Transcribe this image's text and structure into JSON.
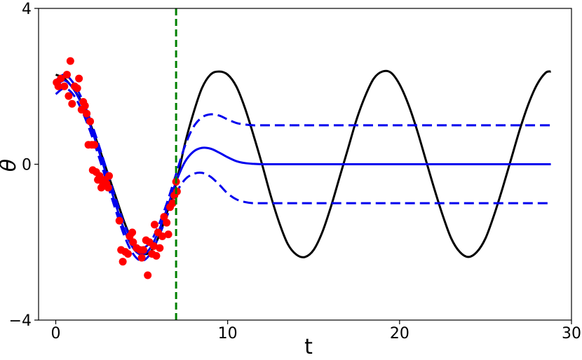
{
  "chart_data": {
    "type": "line",
    "title": "",
    "xlabel": "t",
    "ylabel": "θ",
    "xlim": [
      -1,
      30
    ],
    "ylim": [
      -4,
      4
    ],
    "xticks": [
      0,
      10,
      20,
      30
    ],
    "yticks": [
      -4,
      0,
      4
    ],
    "xtick_labels": [
      "0",
      "10",
      "20",
      "30"
    ],
    "ytick_labels": [
      "−4",
      "0",
      "4"
    ],
    "grid": false,
    "legend": "none",
    "colors": {
      "true_solution": "#000000",
      "prediction_mean": "#0000ee",
      "prediction_band": "#0000ee",
      "observations": "#ff0000",
      "boundary": "#008000"
    },
    "vline": {
      "x": 7
    },
    "series": [
      {
        "kind": "line",
        "style": "solid",
        "color": "#000000",
        "points": [
          [
            0,
            2.3
          ],
          [
            0.5,
            2.2
          ],
          [
            1,
            1.95
          ],
          [
            1.5,
            1.6
          ],
          [
            2,
            1.05
          ],
          [
            2.5,
            0.45
          ],
          [
            3,
            -0.2
          ],
          [
            3.5,
            -0.85
          ],
          [
            4,
            -1.5
          ],
          [
            4.5,
            -2.0
          ],
          [
            5,
            -2.28
          ],
          [
            5.5,
            -2.25
          ],
          [
            6,
            -1.85
          ],
          [
            6.5,
            -1.2
          ],
          [
            7,
            -0.5
          ],
          [
            7.5,
            0.5
          ],
          [
            8,
            1.3
          ],
          [
            8.5,
            1.95
          ],
          [
            9,
            2.3
          ],
          [
            9.5,
            2.38
          ],
          [
            10,
            2.3
          ],
          [
            10.5,
            2.0
          ],
          [
            11,
            1.45
          ],
          [
            11.5,
            0.75
          ],
          [
            12,
            0.0
          ],
          [
            12.5,
            -0.8
          ],
          [
            13,
            -1.5
          ],
          [
            13.5,
            -2.05
          ],
          [
            14,
            -2.32
          ],
          [
            14.5,
            -2.38
          ],
          [
            15,
            -2.2
          ],
          [
            15.5,
            -1.75
          ],
          [
            16,
            -1.1
          ],
          [
            16.5,
            -0.35
          ],
          [
            17,
            0.4
          ],
          [
            17.5,
            1.15
          ],
          [
            18,
            1.75
          ],
          [
            18.5,
            2.2
          ],
          [
            19,
            2.38
          ],
          [
            19.5,
            2.35
          ],
          [
            20,
            2.05
          ],
          [
            20.5,
            1.55
          ],
          [
            21,
            0.9
          ],
          [
            21.5,
            0.15
          ],
          [
            22,
            -0.6
          ],
          [
            22.5,
            -1.3
          ],
          [
            23,
            -1.9
          ],
          [
            23.5,
            -2.25
          ],
          [
            24,
            -2.38
          ],
          [
            24.5,
            -2.25
          ],
          [
            25,
            -1.9
          ],
          [
            25.5,
            -1.3
          ],
          [
            26,
            -0.6
          ],
          [
            26.5,
            0.15
          ],
          [
            27,
            0.9
          ],
          [
            27.5,
            1.55
          ],
          [
            28,
            2.05
          ],
          [
            28.5,
            2.35
          ],
          [
            28.8,
            2.38
          ]
        ]
      },
      {
        "kind": "line",
        "style": "solid",
        "color": "#0000ee",
        "points": [
          [
            0,
            2.0
          ],
          [
            0.5,
            2.15
          ],
          [
            1,
            1.95
          ],
          [
            1.5,
            1.55
          ],
          [
            2,
            1.0
          ],
          [
            2.5,
            0.35
          ],
          [
            3,
            -0.35
          ],
          [
            3.5,
            -1.05
          ],
          [
            4,
            -1.7
          ],
          [
            4.5,
            -2.15
          ],
          [
            5,
            -2.32
          ],
          [
            5.5,
            -2.15
          ],
          [
            6,
            -1.7
          ],
          [
            6.5,
            -1.1
          ],
          [
            7,
            -0.45
          ],
          [
            7.5,
            0.05
          ],
          [
            8,
            0.32
          ],
          [
            8.5,
            0.42
          ],
          [
            9,
            0.4
          ],
          [
            9.5,
            0.3
          ],
          [
            10,
            0.18
          ],
          [
            10.5,
            0.08
          ],
          [
            11,
            0.03
          ],
          [
            11.5,
            0.01
          ],
          [
            12,
            0.0
          ],
          [
            13,
            0.0
          ],
          [
            15,
            0.0
          ],
          [
            20,
            0.0
          ],
          [
            25,
            0.0
          ],
          [
            28.8,
            0.0
          ]
        ]
      },
      {
        "kind": "line",
        "style": "dashed",
        "color": "#0000ee",
        "points": [
          [
            0,
            2.15
          ],
          [
            0.5,
            2.3
          ],
          [
            1,
            2.1
          ],
          [
            1.5,
            1.7
          ],
          [
            2,
            1.15
          ],
          [
            2.5,
            0.5
          ],
          [
            3,
            -0.2
          ],
          [
            3.5,
            -0.9
          ],
          [
            4,
            -1.55
          ],
          [
            4.5,
            -2.0
          ],
          [
            5,
            -2.15
          ],
          [
            5.5,
            -2.0
          ],
          [
            6,
            -1.55
          ],
          [
            6.5,
            -0.95
          ],
          [
            7,
            -0.25
          ],
          [
            7.5,
            0.45
          ],
          [
            8,
            0.95
          ],
          [
            8.5,
            1.2
          ],
          [
            9,
            1.28
          ],
          [
            9.5,
            1.25
          ],
          [
            10,
            1.15
          ],
          [
            10.5,
            1.06
          ],
          [
            11,
            1.02
          ],
          [
            11.5,
            1.0
          ],
          [
            12,
            1.0
          ],
          [
            15,
            1.0
          ],
          [
            20,
            1.0
          ],
          [
            25,
            1.0
          ],
          [
            28.8,
            1.0
          ]
        ]
      },
      {
        "kind": "line",
        "style": "dashed",
        "color": "#0000ee",
        "points": [
          [
            0,
            1.8
          ],
          [
            0.5,
            1.95
          ],
          [
            1,
            1.8
          ],
          [
            1.5,
            1.4
          ],
          [
            2,
            0.85
          ],
          [
            2.5,
            0.2
          ],
          [
            3,
            -0.5
          ],
          [
            3.5,
            -1.2
          ],
          [
            4,
            -1.85
          ],
          [
            4.5,
            -2.3
          ],
          [
            5,
            -2.48
          ],
          [
            5.5,
            -2.3
          ],
          [
            6,
            -1.85
          ],
          [
            6.5,
            -1.3
          ],
          [
            7,
            -0.75
          ],
          [
            7.5,
            -0.4
          ],
          [
            8,
            -0.25
          ],
          [
            8.5,
            -0.22
          ],
          [
            9,
            -0.32
          ],
          [
            9.5,
            -0.52
          ],
          [
            10,
            -0.75
          ],
          [
            10.5,
            -0.9
          ],
          [
            11,
            -0.97
          ],
          [
            11.5,
            -1.0
          ],
          [
            12,
            -1.0
          ],
          [
            15,
            -1.0
          ],
          [
            20,
            -1.0
          ],
          [
            25,
            -1.0
          ],
          [
            28.8,
            -1.0
          ]
        ]
      },
      {
        "kind": "scatter",
        "color": "#ff0000",
        "points": [
          [
            0.05,
            2.1
          ],
          [
            0.15,
            2.0
          ],
          [
            0.3,
            2.2
          ],
          [
            0.5,
            2.0
          ],
          [
            0.65,
            2.3
          ],
          [
            0.75,
            1.75
          ],
          [
            0.85,
            2.65
          ],
          [
            0.95,
            1.55
          ],
          [
            1.1,
            2.0
          ],
          [
            1.25,
            1.95
          ],
          [
            1.35,
            2.2
          ],
          [
            1.5,
            1.4
          ],
          [
            1.6,
            1.6
          ],
          [
            1.7,
            1.5
          ],
          [
            1.8,
            1.3
          ],
          [
            1.9,
            0.5
          ],
          [
            2.0,
            1.1
          ],
          [
            2.1,
            0.5
          ],
          [
            2.15,
            -0.15
          ],
          [
            2.25,
            0.5
          ],
          [
            2.35,
            -0.2
          ],
          [
            2.45,
            -0.4
          ],
          [
            2.55,
            -0.3
          ],
          [
            2.65,
            -0.6
          ],
          [
            2.75,
            -0.5
          ],
          [
            2.85,
            -0.4
          ],
          [
            2.95,
            -0.5
          ],
          [
            3.05,
            -0.6
          ],
          [
            3.1,
            -0.3
          ],
          [
            3.7,
            -1.45
          ],
          [
            3.8,
            -2.2
          ],
          [
            3.9,
            -2.5
          ],
          [
            4.05,
            -2.25
          ],
          [
            4.2,
            -2.3
          ],
          [
            4.3,
            -1.85
          ],
          [
            4.45,
            -1.75
          ],
          [
            4.5,
            -2.0
          ],
          [
            4.7,
            -2.15
          ],
          [
            4.9,
            -2.2
          ],
          [
            5.0,
            -2.4
          ],
          [
            5.1,
            -2.2
          ],
          [
            5.25,
            -1.95
          ],
          [
            5.35,
            -2.85
          ],
          [
            5.45,
            -2.0
          ],
          [
            5.6,
            -2.3
          ],
          [
            5.7,
            -2.1
          ],
          [
            5.75,
            -1.55
          ],
          [
            5.85,
            -2.35
          ],
          [
            5.95,
            -1.75
          ],
          [
            6.05,
            -2.15
          ],
          [
            6.2,
            -1.85
          ],
          [
            6.3,
            -1.35
          ],
          [
            6.45,
            -1.5
          ],
          [
            6.55,
            -1.8
          ],
          [
            6.65,
            -1.1
          ],
          [
            6.8,
            -1.0
          ],
          [
            6.9,
            -0.8
          ],
          [
            7.0,
            -0.45
          ],
          [
            7.05,
            -0.7
          ]
        ]
      }
    ]
  }
}
